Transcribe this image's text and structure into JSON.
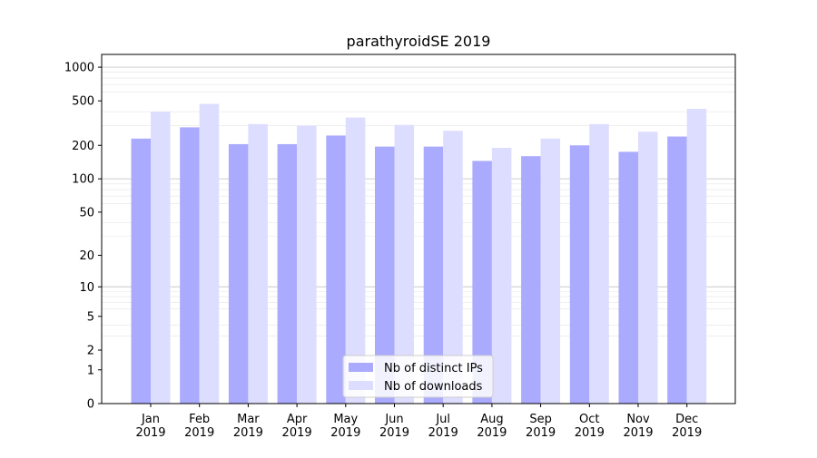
{
  "chart_data": {
    "type": "bar",
    "title": "parathyroidSE 2019",
    "xlabel": "",
    "ylabel": "",
    "yscale": "log(1+y)",
    "ylim": [
      0,
      1300
    ],
    "yticks": [
      0,
      1,
      2,
      5,
      10,
      20,
      50,
      100,
      200,
      500,
      1000
    ],
    "grid": "horizontal",
    "legend_position": "bottom-center",
    "categories": [
      "Jan\n2019",
      "Feb\n2019",
      "Mar\n2019",
      "Apr\n2019",
      "May\n2019",
      "Jun\n2019",
      "Jul\n2019",
      "Aug\n2019",
      "Sep\n2019",
      "Oct\n2019",
      "Nov\n2019",
      "Dec\n2019"
    ],
    "series": [
      {
        "name": "Nb of distinct IPs",
        "color": "#aaaaff",
        "values": [
          230,
          290,
          205,
          205,
          245,
          195,
          195,
          145,
          160,
          200,
          175,
          240
        ]
      },
      {
        "name": "Nb of downloads",
        "color": "#ddddff",
        "values": [
          400,
          470,
          310,
          300,
          355,
          305,
          270,
          190,
          230,
          310,
          265,
          425
        ]
      }
    ]
  }
}
